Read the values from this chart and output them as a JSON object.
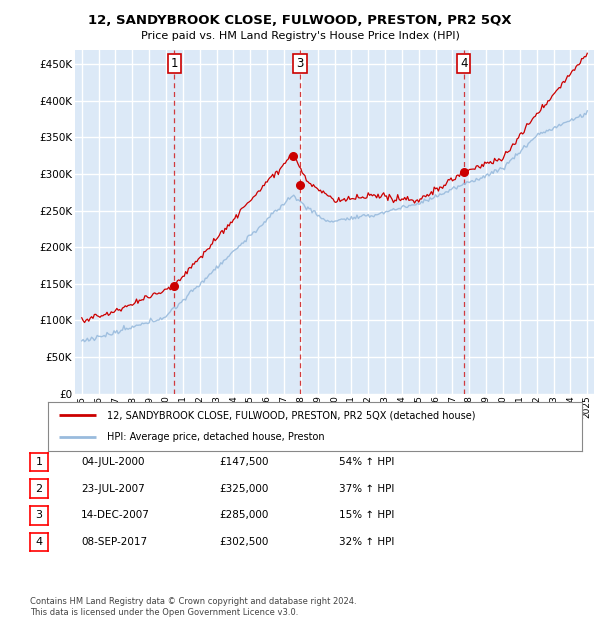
{
  "title": "12, SANDYBROOK CLOSE, FULWOOD, PRESTON, PR2 5QX",
  "subtitle": "Price paid vs. HM Land Registry's House Price Index (HPI)",
  "ylim": [
    0,
    470000
  ],
  "yticks": [
    0,
    50000,
    100000,
    150000,
    200000,
    250000,
    300000,
    350000,
    400000,
    450000
  ],
  "background_color": "#dce9f7",
  "grid_color": "#ffffff",
  "sale_color": "#cc0000",
  "hpi_color": "#99bbdd",
  "sale_dates": [
    2000.5,
    2007.55,
    2007.96,
    2017.67
  ],
  "sale_prices": [
    147500,
    325000,
    285000,
    302500
  ],
  "sale_labels": [
    "1",
    "2",
    "3",
    "4"
  ],
  "legend_sale": "12, SANDYBROOK CLOSE, FULWOOD, PRESTON, PR2 5QX (detached house)",
  "legend_hpi": "HPI: Average price, detached house, Preston",
  "table_rows": [
    [
      "1",
      "04-JUL-2000",
      "£147,500",
      "54% ↑ HPI"
    ],
    [
      "2",
      "23-JUL-2007",
      "£325,000",
      "37% ↑ HPI"
    ],
    [
      "3",
      "14-DEC-2007",
      "£285,000",
      "15% ↑ HPI"
    ],
    [
      "4",
      "08-SEP-2017",
      "£302,500",
      "32% ↑ HPI"
    ]
  ],
  "footer": "Contains HM Land Registry data © Crown copyright and database right 2024.\nThis data is licensed under the Open Government Licence v3.0.",
  "dashed_vlines": [
    2000.5,
    2007.96,
    2017.67
  ],
  "vline_labels": [
    "1",
    "3",
    "4"
  ],
  "xlim_left": 1994.6,
  "xlim_right": 2025.4,
  "years": [
    1995,
    1996,
    1997,
    1998,
    1999,
    2000,
    2001,
    2002,
    2003,
    2004,
    2005,
    2006,
    2007,
    2008,
    2009,
    2010,
    2011,
    2012,
    2013,
    2014,
    2015,
    2016,
    2017,
    2018,
    2019,
    2020,
    2021,
    2022,
    2023,
    2024,
    2025
  ]
}
